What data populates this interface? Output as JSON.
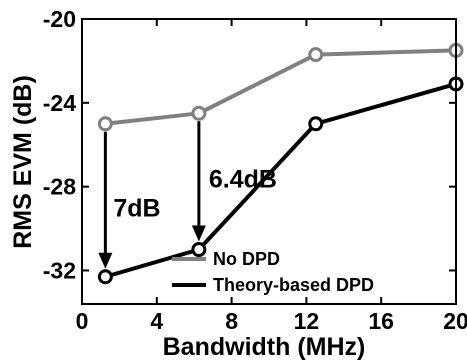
{
  "chart_data": {
    "type": "line",
    "xlabel": "Bandwidth (MHz)",
    "ylabel": "RMS EVM (dB)",
    "xlim": [
      0,
      20
    ],
    "ylim": [
      -33.6,
      -20
    ],
    "xticks": [
      0,
      4,
      8,
      12,
      16,
      20
    ],
    "yticks": [
      -20,
      -24,
      -28,
      -32
    ],
    "xtick_labels": [
      "0",
      "4",
      "8",
      "12",
      "16",
      "20"
    ],
    "ytick_labels": [
      "-20",
      "-24",
      "-28",
      "-32"
    ],
    "grid": false,
    "legend_position": "bottom-right",
    "series": [
      {
        "name": "No DPD",
        "color": "#808080",
        "x": [
          1.25,
          6.25,
          12.5,
          20
        ],
        "y": [
          -25.0,
          -24.5,
          -21.7,
          -21.5
        ]
      },
      {
        "name": "Theory-based DPD",
        "color": "#000000",
        "x": [
          1.25,
          6.25,
          12.5,
          20
        ],
        "y": [
          -32.3,
          -31.0,
          -25.0,
          -23.1
        ]
      }
    ],
    "annotations": [
      {
        "text": "7dB",
        "x": 1.25,
        "y_from": -25.0,
        "y_to": -32.3
      },
      {
        "text": "6.4dB",
        "x": 6.25,
        "y_from": -24.5,
        "y_to": -31.0
      }
    ]
  }
}
